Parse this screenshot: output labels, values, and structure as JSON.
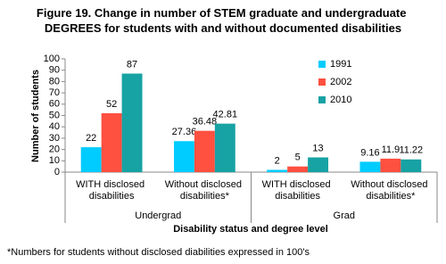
{
  "chart_data": {
    "type": "bar",
    "title": "Figure 19. Change in number of STEM graduate and undergraduate DEGREES for students with and without documented disabilities",
    "categories": [
      "WITH disclosed disabilities",
      "Without disclosed disabilities*",
      "WITH disclosed disabilities",
      "Without disclosed disabilities*"
    ],
    "groups": [
      {
        "label": "Undergrad",
        "span": 2
      },
      {
        "label": "Grad",
        "span": 2
      }
    ],
    "series": [
      {
        "name": "1991",
        "color": "#00ccff",
        "values": [
          22,
          27.36,
          2,
          9.16
        ]
      },
      {
        "name": "2002",
        "color": "#ff5040",
        "values": [
          52,
          36.48,
          5,
          11.9
        ]
      },
      {
        "name": "2010",
        "color": "#17a2a4",
        "values": [
          87,
          42.81,
          13,
          11.22
        ]
      }
    ],
    "ylim": [
      0,
      100
    ],
    "yticks": [
      0,
      10,
      20,
      30,
      40,
      50,
      60,
      70,
      80,
      90,
      100
    ],
    "ylabel": "Number of students",
    "xlabel": "Disability status and degree level",
    "legend": "right",
    "footnote": "*Numbers for students without disclosed diabilities expressed in 100's"
  }
}
